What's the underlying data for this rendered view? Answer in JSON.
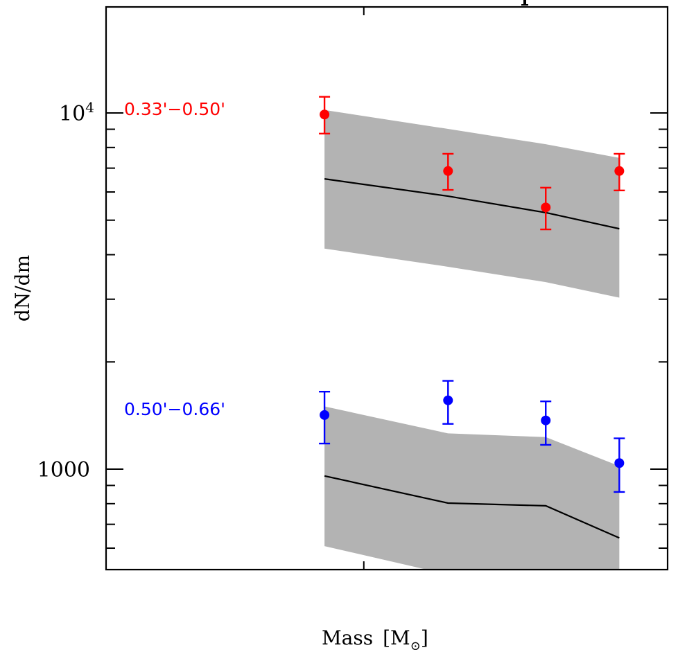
{
  "chart_data": {
    "type": "scatter",
    "title": "",
    "title_fragment_visible": "p",
    "xlabel": "Mass [M⊙]",
    "xlabel_main": "Mass",
    "xlabel_unit_symbol": "M",
    "xlabel_unit_subscript": "⊙",
    "ylabel": "dN/dm",
    "yscale": "log",
    "ylim": [
      522,
      19900
    ],
    "xlim": [
      0,
      1
    ],
    "x_note": "x tick labels not visible; x given in normalized axis units",
    "x_major_ticks": [
      0.459
    ],
    "y_major_ticks": [
      {
        "value": 10000,
        "label": "10",
        "label_sup": "4"
      },
      {
        "value": 1000,
        "label": "1000",
        "label_sup": ""
      }
    ],
    "y_minor_ticks": [
      600,
      700,
      800,
      900,
      2000,
      3000,
      4000,
      5000,
      6000,
      7000,
      8000,
      9000
    ],
    "grid": false,
    "series": [
      {
        "name": "0.33'−0.50'",
        "color": "#ff0000",
        "x": [
          0.389,
          0.609,
          0.783,
          0.914
        ],
        "y": [
          9900,
          6870,
          5430,
          6870
        ],
        "y_err_low": [
          8750,
          6080,
          4710,
          6060
        ],
        "y_err_high": [
          11100,
          7680,
          6170,
          7680
        ],
        "model": {
          "x": [
            0.389,
            0.609,
            0.783,
            0.914
          ],
          "median": [
            6530,
            5840,
            5250,
            4730
          ],
          "band_low": [
            4160,
            3700,
            3350,
            3030
          ],
          "band_high": [
            10190,
            9020,
            8170,
            7480
          ]
        }
      },
      {
        "name": "0.50'−0.66'",
        "color": "#0000ff",
        "x": [
          0.389,
          0.609,
          0.783,
          0.914
        ],
        "y": [
          1419,
          1560,
          1370,
          1040
        ],
        "y_err_low": [
          1180,
          1340,
          1170,
          863
        ],
        "y_err_high": [
          1650,
          1770,
          1550,
          1220
        ],
        "model": {
          "x": [
            0.389,
            0.609,
            0.783,
            0.914
          ],
          "median": [
            957,
            803,
            789,
            641
          ],
          "band_low": [
            608,
            506,
            440,
            403
          ],
          "band_high": [
            1500,
            1260,
            1230,
            1020
          ]
        }
      }
    ],
    "legend": [
      {
        "label": "0.33'−0.50'",
        "color": "#ff0000",
        "placement": "left, near 10^4"
      },
      {
        "label": "0.50'−0.66'",
        "color": "#0000ff",
        "placement": "left, above 1000"
      }
    ],
    "band_color": "#b3b3b3",
    "median_color": "#000000"
  }
}
